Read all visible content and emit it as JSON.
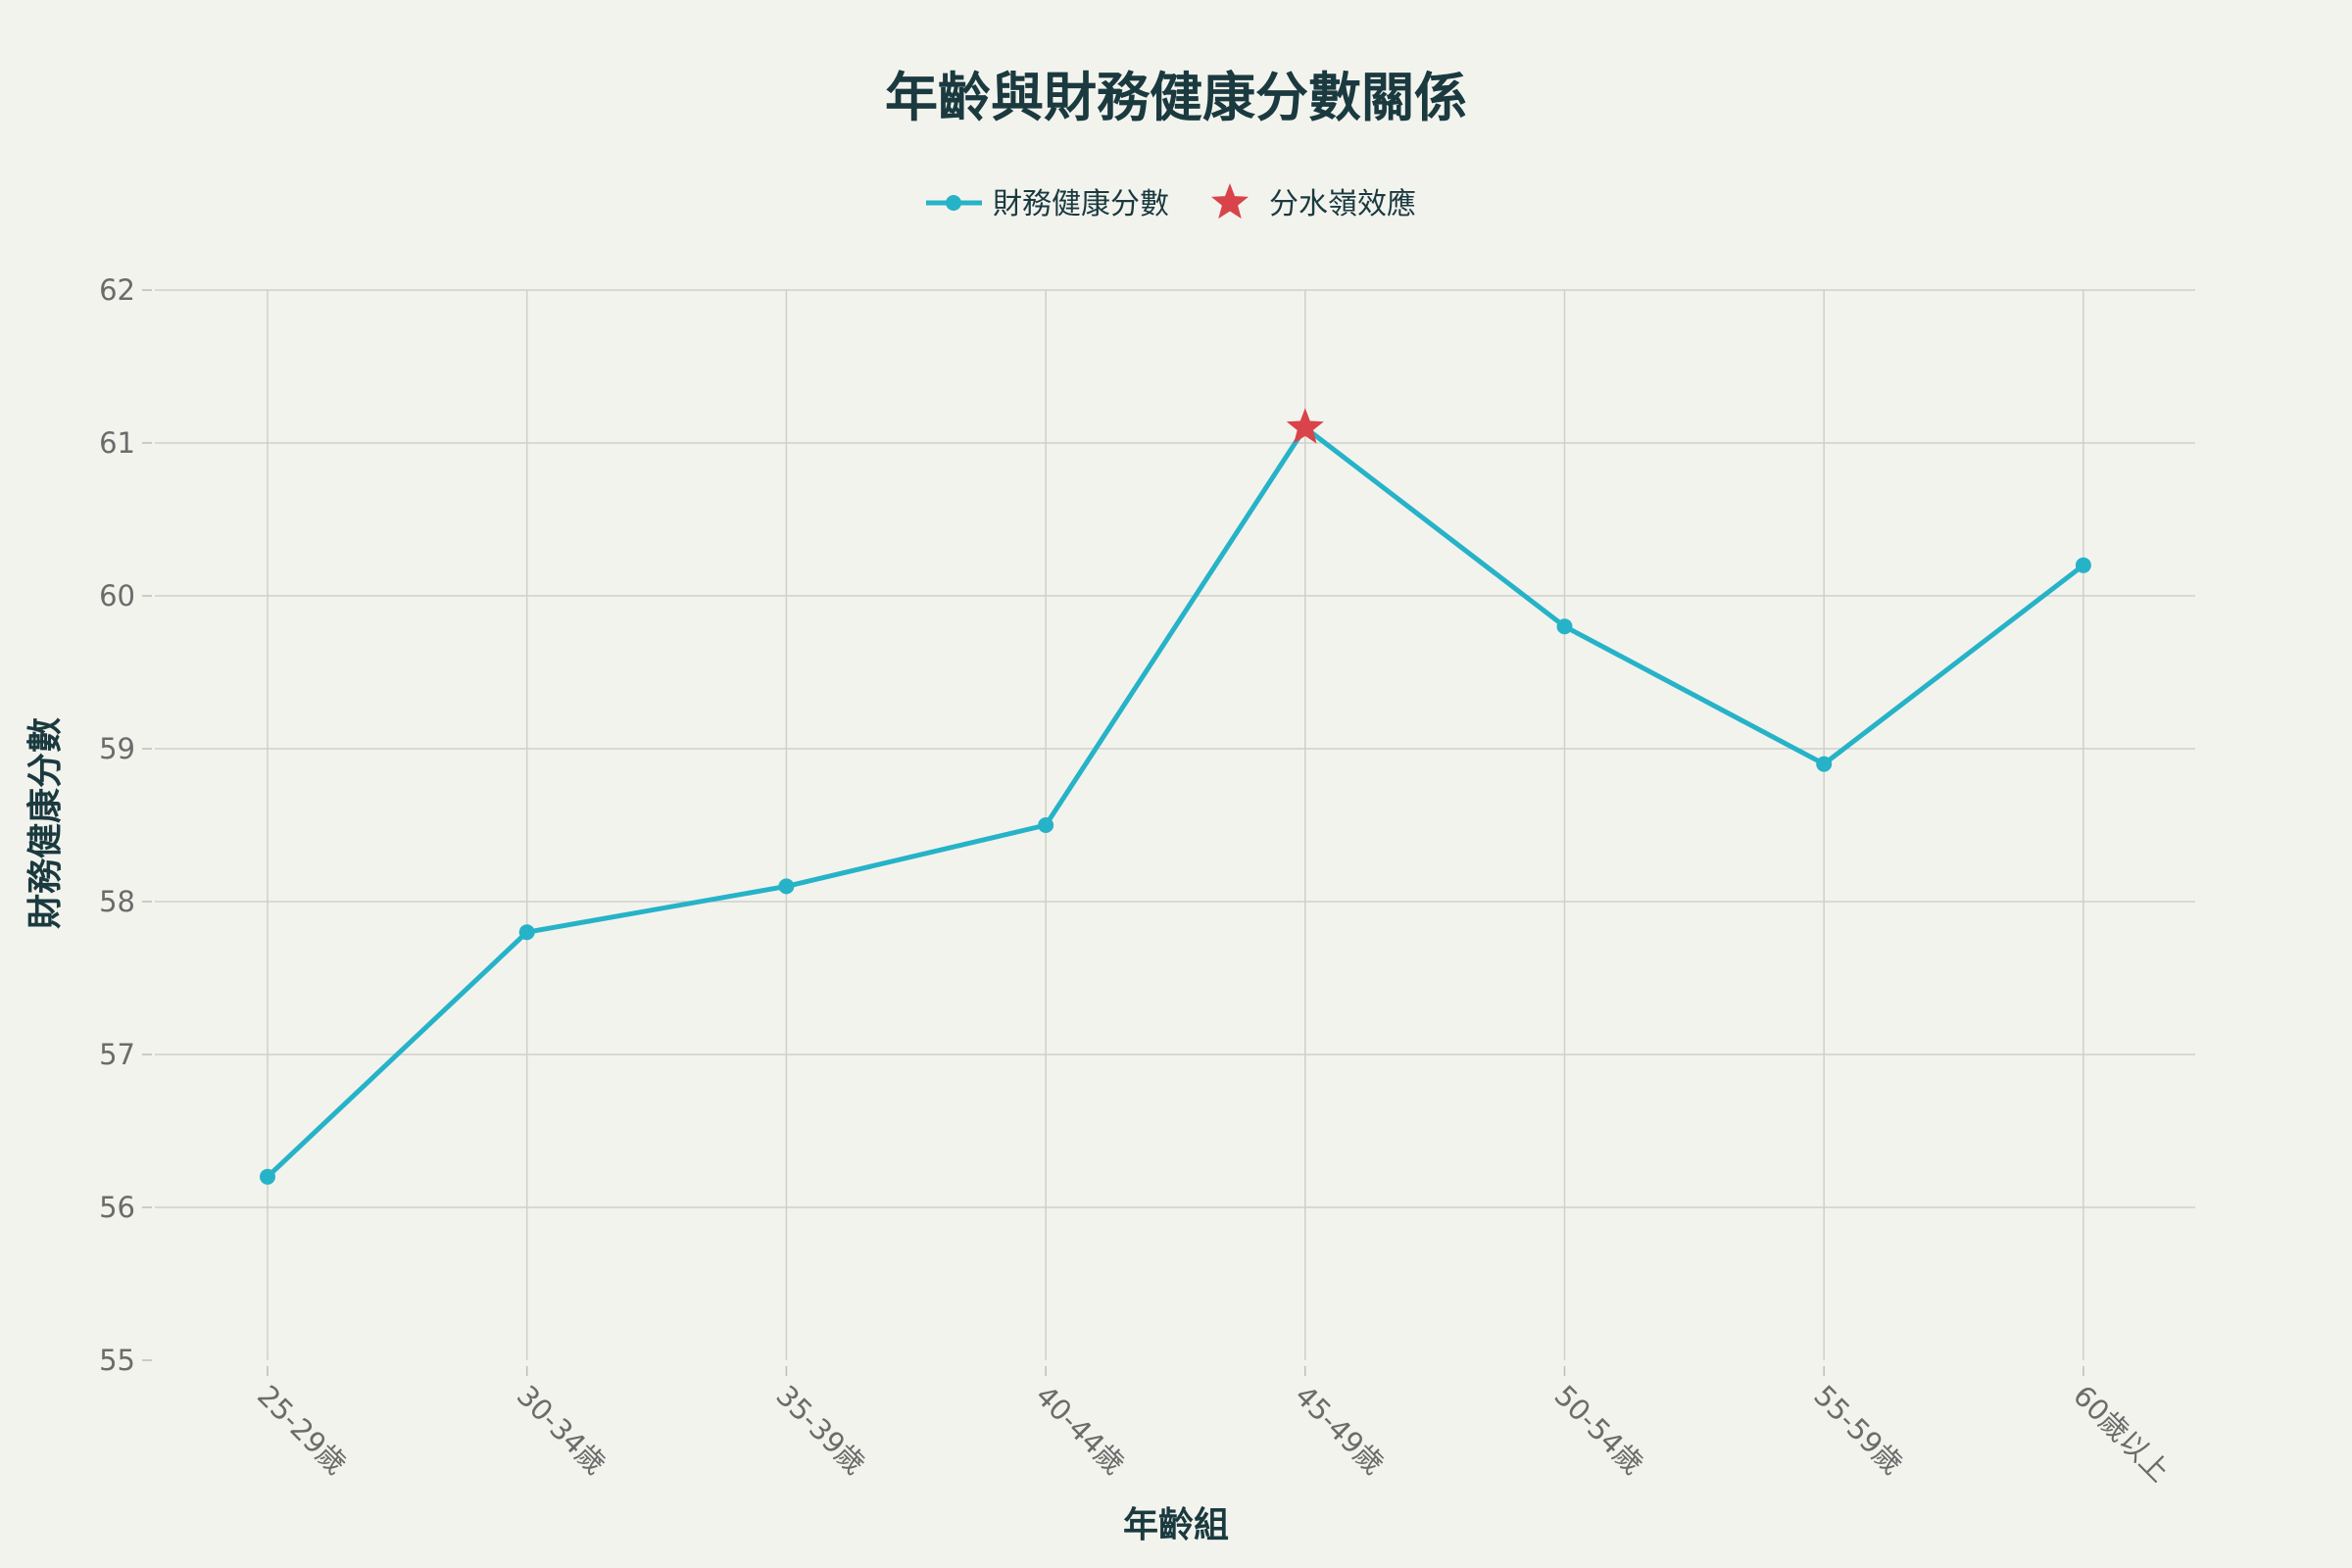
{
  "chart_data": {
    "type": "line",
    "title": "年齡與財務健康分數關係",
    "xlabel": "年齡組",
    "ylabel": "財務健康分數",
    "categories": [
      "25-29歲",
      "30-34歲",
      "35-39歲",
      "40-44歲",
      "45-49歲",
      "50-54歲",
      "55-59歲",
      "60歲以上"
    ],
    "series": [
      {
        "name": "財務健康分數",
        "values": [
          56.2,
          57.8,
          58.1,
          58.5,
          61.1,
          59.8,
          58.9,
          60.2
        ],
        "color": "#26b3c8"
      }
    ],
    "highlight": {
      "name": "分水嶺效應",
      "category": "45-49歲",
      "value": 61.1,
      "marker": "star",
      "color": "#d9434a"
    },
    "ylim": [
      55,
      62
    ],
    "yticks": [
      55,
      56,
      57,
      58,
      59,
      60,
      61,
      62
    ],
    "grid": true,
    "legend_position": "top-center"
  }
}
